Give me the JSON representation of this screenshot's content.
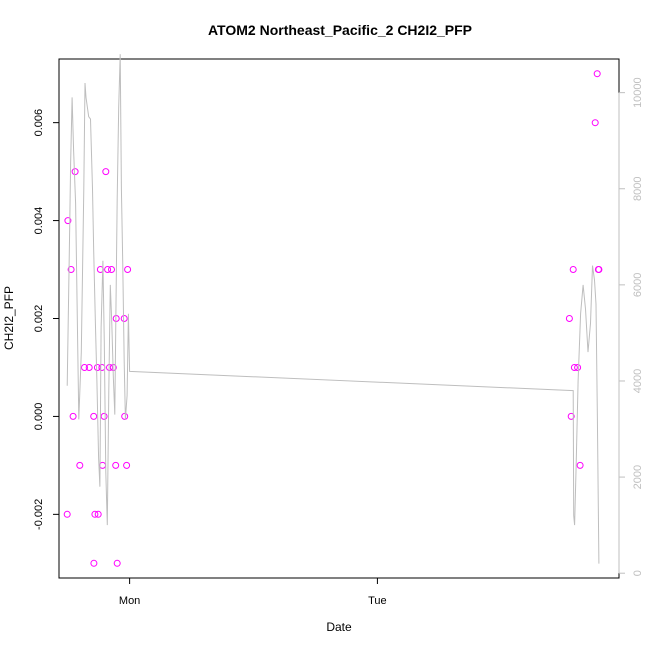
{
  "chart_data": {
    "type": "scatter",
    "title": "ATOM2 Northeast_Pacific_2 CH2I2_PFP",
    "xlabel": "Date",
    "ylabel": "CH2I2_PFP",
    "x_tick_labels": [
      "Mon",
      "Tue"
    ],
    "x_tick_values_days": [
      0,
      1
    ],
    "xlim_days": [
      -0.285,
      1.975
    ],
    "ylim": [
      -0.0033,
      0.0073
    ],
    "y_ticks": [
      -0.002,
      0.0,
      0.002,
      0.004,
      0.006
    ],
    "y_tick_labels": [
      "-0.002",
      "0.000",
      "0.002",
      "0.004",
      "0.006"
    ],
    "y2lim": [
      -100,
      10700
    ],
    "y2_ticks": [
      0,
      2000,
      4000,
      6000,
      8000,
      10000
    ],
    "y2_tick_labels": [
      "0",
      "2000",
      "4000",
      "6000",
      "8000",
      "10000"
    ],
    "grid": false,
    "legend": "none",
    "series": [
      {
        "marker": "circle-open",
        "color": "#ff00ff",
        "axis": "left",
        "x": [
          -0.252,
          -0.249,
          -0.236,
          -0.228,
          -0.22,
          -0.201,
          -0.182,
          -0.163,
          -0.145,
          -0.14,
          -0.144,
          -0.13,
          -0.127,
          -0.118,
          -0.109,
          -0.112,
          -0.103,
          -0.096,
          -0.089,
          -0.081,
          -0.073,
          -0.066,
          -0.056,
          -0.05,
          -0.054,
          -0.022,
          -0.02,
          -0.012,
          -0.008,
          1.79,
          1.775,
          1.782,
          1.795,
          1.808,
          1.818,
          1.879,
          1.887,
          1.892,
          1.894
        ],
        "y": [
          -0.002,
          0.004,
          0.003,
          0.0,
          0.005,
          -0.001,
          0.001,
          0.001,
          0.0,
          -0.002,
          -0.003,
          0.001,
          -0.002,
          0.003,
          -0.001,
          0.001,
          0.0,
          0.005,
          0.003,
          0.001,
          0.003,
          0.001,
          -0.001,
          -0.003,
          0.002,
          0.002,
          0.0,
          -0.001,
          0.003,
          0.003,
          0.002,
          0.0,
          0.001,
          0.001,
          -0.001,
          0.006,
          0.007,
          0.003,
          0.003
        ]
      },
      {
        "marker": "line",
        "color": "#bebebe",
        "axis": "right",
        "x": [
          -0.252,
          -0.242,
          -0.238,
          -0.232,
          -0.226,
          -0.218,
          -0.205,
          -0.195,
          -0.185,
          -0.18,
          -0.176,
          -0.165,
          -0.158,
          -0.15,
          -0.145,
          -0.138,
          -0.132,
          -0.125,
          -0.12,
          -0.115,
          -0.108,
          -0.102,
          -0.096,
          -0.09,
          -0.084,
          -0.078,
          -0.072,
          -0.066,
          -0.06,
          -0.055,
          -0.05,
          -0.044,
          -0.038,
          -0.033,
          -0.028,
          -0.022,
          -0.017,
          -0.01,
          -0.005,
          0.0,
          1.79,
          1.792,
          1.796,
          1.802,
          1.81,
          1.82,
          1.83,
          1.84,
          1.85,
          1.86,
          1.868,
          1.876,
          1.882,
          1.888,
          1.894
        ],
        "y": [
          3900,
          7200,
          8500,
          9900,
          8800,
          7700,
          3200,
          4600,
          8000,
          10200,
          9900,
          9500,
          9450,
          8000,
          6700,
          5200,
          4000,
          2400,
          1800,
          5100,
          6500,
          4800,
          2100,
          1000,
          3800,
          6000,
          5200,
          4100,
          3300,
          5600,
          7800,
          9700,
          10800,
          8000,
          6500,
          4400,
          3200,
          3700,
          5400,
          4200,
          3800,
          1200,
          1000,
          2200,
          4000,
          5400,
          6000,
          5500,
          4600,
          5200,
          6400,
          6100,
          5600,
          3200,
          200
        ]
      }
    ]
  }
}
